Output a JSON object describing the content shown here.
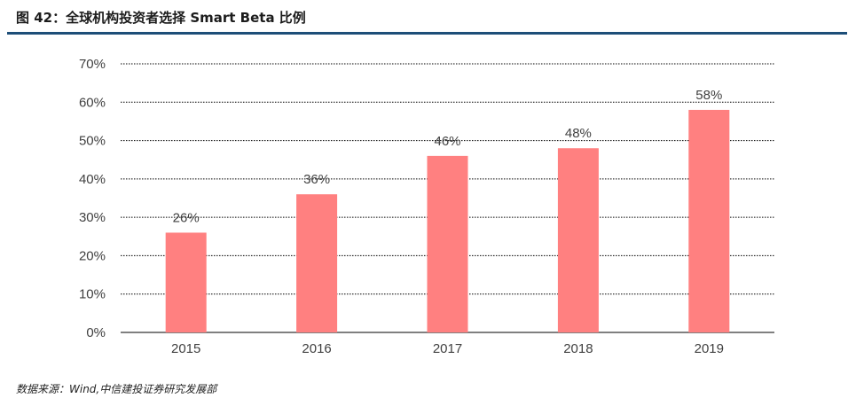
{
  "figure": {
    "title": "图 42：全球机构投资者选择 Smart Beta 比例",
    "source": "数据来源：Wind,中信建投证券研究发展部"
  },
  "colors": {
    "bar": "#ff8080",
    "title_rule": "#1d4e78",
    "grid": "#000000",
    "axis_text": "#404040"
  },
  "chart_data": {
    "type": "bar",
    "categories": [
      "2015",
      "2016",
      "2017",
      "2018",
      "2019"
    ],
    "values": [
      26,
      36,
      46,
      48,
      58
    ],
    "data_labels": [
      "26%",
      "36%",
      "46%",
      "48%",
      "58%"
    ],
    "y_ticks": [
      "0%",
      "10%",
      "20%",
      "30%",
      "40%",
      "50%",
      "60%",
      "70%"
    ],
    "ylim": [
      0,
      70
    ],
    "ytick_step": 10,
    "grid": true,
    "grid_style": "dotted",
    "legend": "none"
  }
}
